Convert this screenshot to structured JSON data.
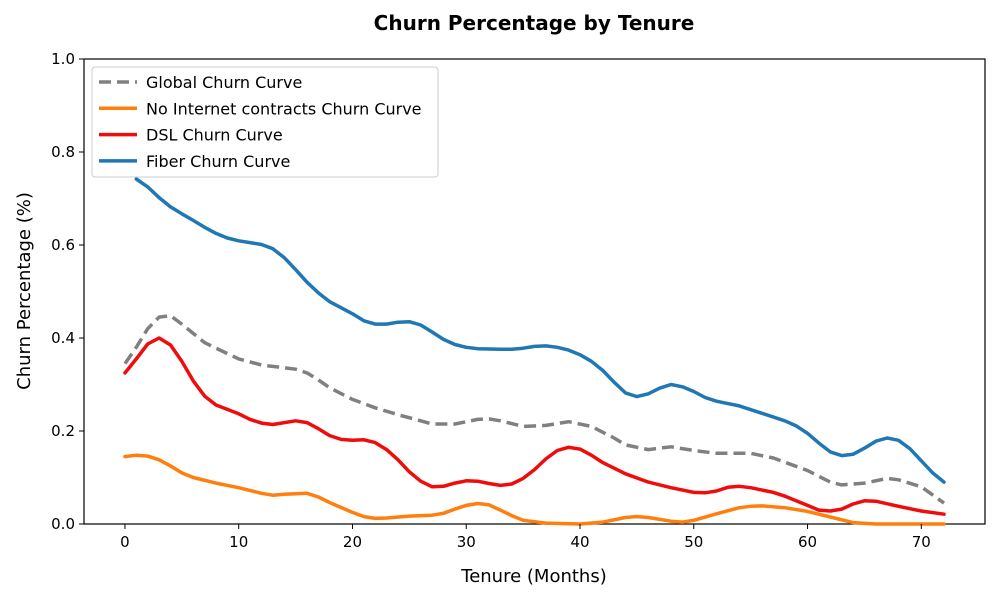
{
  "chart_data": {
    "type": "line",
    "title": "Churn Percentage by Tenure",
    "xlabel": "Tenure (Months)",
    "ylabel": "Churn Percentage (%)",
    "xlim": [
      -3.6,
      75.6
    ],
    "ylim": [
      0,
      1.0
    ],
    "x_ticks": [
      0,
      10,
      20,
      30,
      40,
      50,
      60,
      70
    ],
    "y_ticks": [
      0.0,
      0.2,
      0.4,
      0.6,
      0.8,
      1.0
    ],
    "y_tick_labels": [
      "0.0",
      "0.2",
      "0.4",
      "0.6",
      "0.8",
      "1.0"
    ],
    "grid": false,
    "legend_position": "top-left",
    "series": [
      {
        "name": "Global Churn Curve",
        "color": "#808080",
        "dash": "dashed",
        "points": [
          [
            0,
            0.345
          ],
          [
            1,
            0.38
          ],
          [
            2,
            0.42
          ],
          [
            3,
            0.445
          ],
          [
            4,
            0.448
          ],
          [
            5,
            0.43
          ],
          [
            6,
            0.41
          ],
          [
            7,
            0.39
          ],
          [
            8,
            0.378
          ],
          [
            10,
            0.355
          ],
          [
            12,
            0.342
          ],
          [
            14,
            0.336
          ],
          [
            15,
            0.333
          ],
          [
            16,
            0.325
          ],
          [
            17,
            0.31
          ],
          [
            18,
            0.293
          ],
          [
            20,
            0.268
          ],
          [
            22,
            0.25
          ],
          [
            24,
            0.235
          ],
          [
            26,
            0.222
          ],
          [
            27,
            0.215
          ],
          [
            29,
            0.215
          ],
          [
            31,
            0.225
          ],
          [
            32,
            0.226
          ],
          [
            33,
            0.222
          ],
          [
            35,
            0.21
          ],
          [
            37,
            0.212
          ],
          [
            39,
            0.22
          ],
          [
            41,
            0.21
          ],
          [
            43,
            0.185
          ],
          [
            44,
            0.17
          ],
          [
            46,
            0.16
          ],
          [
            48,
            0.166
          ],
          [
            50,
            0.158
          ],
          [
            52,
            0.152
          ],
          [
            55,
            0.152
          ],
          [
            57,
            0.142
          ],
          [
            60,
            0.115
          ],
          [
            62,
            0.09
          ],
          [
            63,
            0.084
          ],
          [
            65,
            0.088
          ],
          [
            67,
            0.098
          ],
          [
            68,
            0.095
          ],
          [
            70,
            0.08
          ],
          [
            72,
            0.045
          ]
        ]
      },
      {
        "name": "No Internet contracts Churn Curve",
        "color": "#ff7f0e",
        "dash": "solid",
        "points": [
          [
            0,
            0.145
          ],
          [
            1,
            0.148
          ],
          [
            2,
            0.146
          ],
          [
            3,
            0.138
          ],
          [
            4,
            0.125
          ],
          [
            5,
            0.11
          ],
          [
            6,
            0.1
          ],
          [
            8,
            0.088
          ],
          [
            10,
            0.078
          ],
          [
            12,
            0.066
          ],
          [
            13,
            0.062
          ],
          [
            14,
            0.064
          ],
          [
            16,
            0.066
          ],
          [
            17,
            0.058
          ],
          [
            18,
            0.046
          ],
          [
            20,
            0.025
          ],
          [
            21,
            0.016
          ],
          [
            22,
            0.012
          ],
          [
            23,
            0.013
          ],
          [
            25,
            0.017
          ],
          [
            27,
            0.019
          ],
          [
            28,
            0.023
          ],
          [
            29,
            0.032
          ],
          [
            30,
            0.04
          ],
          [
            31,
            0.044
          ],
          [
            32,
            0.041
          ],
          [
            33,
            0.03
          ],
          [
            34,
            0.018
          ],
          [
            35,
            0.008
          ],
          [
            37,
            0.002
          ],
          [
            40,
            0.0
          ],
          [
            42,
            0.004
          ],
          [
            44,
            0.014
          ],
          [
            45,
            0.016
          ],
          [
            46,
            0.014
          ],
          [
            48,
            0.006
          ],
          [
            49,
            0.004
          ],
          [
            50,
            0.008
          ],
          [
            52,
            0.022
          ],
          [
            54,
            0.035
          ],
          [
            55,
            0.038
          ],
          [
            56,
            0.039
          ],
          [
            58,
            0.035
          ],
          [
            60,
            0.027
          ],
          [
            62,
            0.015
          ],
          [
            64,
            0.003
          ],
          [
            66,
            0.0
          ],
          [
            72,
            0.0
          ]
        ]
      },
      {
        "name": "DSL Churn Curve",
        "color": "#f00c0c",
        "dash": "solid",
        "points": [
          [
            0,
            0.325
          ],
          [
            1,
            0.355
          ],
          [
            2,
            0.387
          ],
          [
            3,
            0.4
          ],
          [
            4,
            0.385
          ],
          [
            5,
            0.35
          ],
          [
            6,
            0.308
          ],
          [
            7,
            0.275
          ],
          [
            8,
            0.256
          ],
          [
            10,
            0.237
          ],
          [
            11,
            0.225
          ],
          [
            12,
            0.217
          ],
          [
            13,
            0.214
          ],
          [
            15,
            0.222
          ],
          [
            16,
            0.218
          ],
          [
            17,
            0.205
          ],
          [
            18,
            0.19
          ],
          [
            19,
            0.182
          ],
          [
            20,
            0.18
          ],
          [
            21,
            0.181
          ],
          [
            22,
            0.175
          ],
          [
            23,
            0.16
          ],
          [
            24,
            0.138
          ],
          [
            25,
            0.112
          ],
          [
            26,
            0.092
          ],
          [
            27,
            0.08
          ],
          [
            28,
            0.081
          ],
          [
            29,
            0.088
          ],
          [
            30,
            0.093
          ],
          [
            31,
            0.092
          ],
          [
            32,
            0.087
          ],
          [
            33,
            0.083
          ],
          [
            34,
            0.086
          ],
          [
            35,
            0.098
          ],
          [
            36,
            0.117
          ],
          [
            37,
            0.14
          ],
          [
            38,
            0.158
          ],
          [
            39,
            0.165
          ],
          [
            40,
            0.161
          ],
          [
            41,
            0.148
          ],
          [
            42,
            0.132
          ],
          [
            44,
            0.108
          ],
          [
            46,
            0.09
          ],
          [
            48,
            0.078
          ],
          [
            50,
            0.068
          ],
          [
            51,
            0.067
          ],
          [
            52,
            0.071
          ],
          [
            53,
            0.079
          ],
          [
            54,
            0.081
          ],
          [
            55,
            0.078
          ],
          [
            57,
            0.068
          ],
          [
            58,
            0.06
          ],
          [
            60,
            0.04
          ],
          [
            61,
            0.03
          ],
          [
            62,
            0.028
          ],
          [
            63,
            0.032
          ],
          [
            64,
            0.043
          ],
          [
            65,
            0.05
          ],
          [
            66,
            0.049
          ],
          [
            68,
            0.038
          ],
          [
            70,
            0.028
          ],
          [
            72,
            0.021
          ]
        ]
      },
      {
        "name": "Fiber Churn Curve",
        "color": "#1f77b4",
        "dash": "solid",
        "points": [
          [
            1,
            0.742
          ],
          [
            2,
            0.725
          ],
          [
            3,
            0.702
          ],
          [
            4,
            0.682
          ],
          [
            5,
            0.667
          ],
          [
            6,
            0.653
          ],
          [
            7,
            0.638
          ],
          [
            8,
            0.625
          ],
          [
            9,
            0.615
          ],
          [
            10,
            0.609
          ],
          [
            12,
            0.601
          ],
          [
            13,
            0.592
          ],
          [
            14,
            0.573
          ],
          [
            15,
            0.547
          ],
          [
            16,
            0.52
          ],
          [
            17,
            0.497
          ],
          [
            18,
            0.478
          ],
          [
            20,
            0.452
          ],
          [
            21,
            0.437
          ],
          [
            22,
            0.43
          ],
          [
            23,
            0.43
          ],
          [
            24,
            0.434
          ],
          [
            25,
            0.435
          ],
          [
            26,
            0.428
          ],
          [
            27,
            0.413
          ],
          [
            28,
            0.397
          ],
          [
            29,
            0.386
          ],
          [
            30,
            0.38
          ],
          [
            31,
            0.377
          ],
          [
            33,
            0.376
          ],
          [
            34,
            0.376
          ],
          [
            35,
            0.378
          ],
          [
            36,
            0.382
          ],
          [
            37,
            0.383
          ],
          [
            38,
            0.38
          ],
          [
            39,
            0.374
          ],
          [
            40,
            0.364
          ],
          [
            41,
            0.35
          ],
          [
            42,
            0.33
          ],
          [
            43,
            0.305
          ],
          [
            44,
            0.282
          ],
          [
            45,
            0.274
          ],
          [
            46,
            0.28
          ],
          [
            47,
            0.292
          ],
          [
            48,
            0.3
          ],
          [
            49,
            0.295
          ],
          [
            50,
            0.285
          ],
          [
            51,
            0.272
          ],
          [
            52,
            0.264
          ],
          [
            53,
            0.259
          ],
          [
            54,
            0.254
          ],
          [
            56,
            0.238
          ],
          [
            58,
            0.222
          ],
          [
            59,
            0.211
          ],
          [
            60,
            0.195
          ],
          [
            61,
            0.174
          ],
          [
            62,
            0.155
          ],
          [
            63,
            0.147
          ],
          [
            64,
            0.15
          ],
          [
            65,
            0.163
          ],
          [
            66,
            0.178
          ],
          [
            67,
            0.185
          ],
          [
            68,
            0.18
          ],
          [
            69,
            0.162
          ],
          [
            70,
            0.136
          ],
          [
            71,
            0.11
          ],
          [
            72,
            0.09
          ]
        ]
      }
    ]
  }
}
